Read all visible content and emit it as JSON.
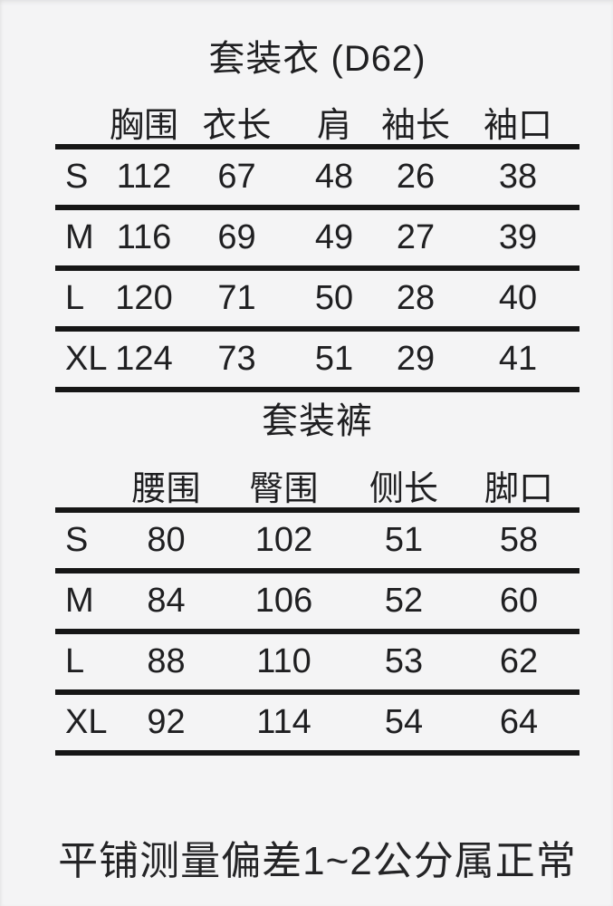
{
  "page": {
    "background_color": "#f4f4f5",
    "text_color": "#1f1f21",
    "rule_color": "#161616"
  },
  "footer_note": "平铺测量偏差1~2公分属正常",
  "chart_data": [
    {
      "type": "table",
      "title": "套装衣 (D62)",
      "columns": [
        "",
        "胸围",
        "衣长",
        "肩",
        "袖长",
        "袖口"
      ],
      "rows": [
        [
          "S",
          "112",
          "67",
          "48",
          "26",
          "38"
        ],
        [
          "M",
          "116",
          "69",
          "49",
          "27",
          "39"
        ],
        [
          "L",
          "120",
          "71",
          "50",
          "28",
          "40"
        ],
        [
          "XL",
          "124",
          "73",
          "51",
          "29",
          "41"
        ]
      ]
    },
    {
      "type": "table",
      "title": "套装裤",
      "columns": [
        "",
        "腰围",
        "臀围",
        "侧长",
        "脚口"
      ],
      "rows": [
        [
          "S",
          "80",
          "102",
          "51",
          "58"
        ],
        [
          "M",
          "84",
          "106",
          "52",
          "60"
        ],
        [
          "L",
          "88",
          "110",
          "53",
          "62"
        ],
        [
          "XL",
          "92",
          "114",
          "54",
          "64"
        ]
      ]
    }
  ]
}
